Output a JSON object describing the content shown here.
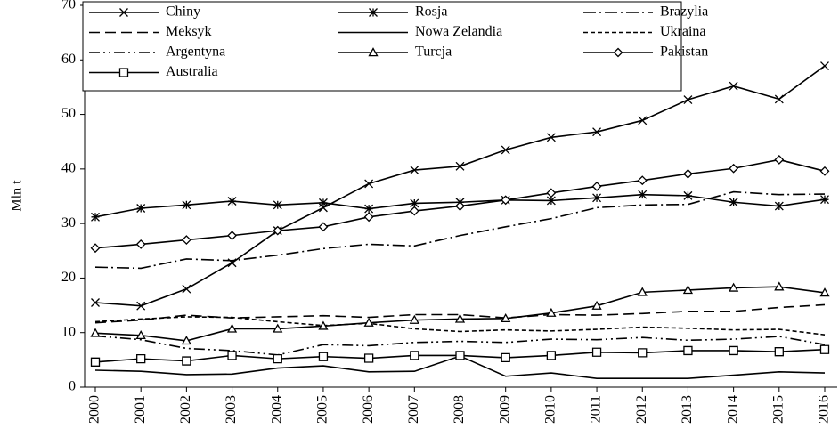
{
  "chart_data": {
    "type": "line",
    "y_label": "Mln t",
    "categories": [
      "2000",
      "2001",
      "2002",
      "2003",
      "2004",
      "2005",
      "2006",
      "2007",
      "2008",
      "2009",
      "2010",
      "2011",
      "2012",
      "2013",
      "2014",
      "2015",
      "2016"
    ],
    "ylim": [
      0,
      70
    ],
    "yticks": [
      0,
      10,
      20,
      30,
      40,
      50,
      60,
      70
    ],
    "legend": "top-left",
    "series": [
      {
        "name": "Chiny",
        "color": "#000000",
        "marker": "x",
        "line_style": "solid",
        "values": [
          15.5,
          14.9,
          18.0,
          22.8,
          28.7,
          32.9,
          37.3,
          39.8,
          40.5,
          43.5,
          45.8,
          46.8,
          48.9,
          52.7,
          55.2,
          52.8,
          58.9
        ]
      },
      {
        "name": "Rosja",
        "color": "#000000",
        "marker": "asterisk",
        "line_style": "solid",
        "values": [
          31.2,
          32.8,
          33.4,
          34.1,
          33.4,
          33.8,
          32.7,
          33.7,
          33.9,
          34.3,
          34.2,
          34.7,
          35.3,
          35.1,
          33.9,
          33.2,
          34.4
        ]
      },
      {
        "name": "Brazylia",
        "color": "#000000",
        "marker": "none",
        "line_style": "dash-dot",
        "values": [
          22.0,
          21.8,
          23.5,
          23.2,
          24.2,
          25.4,
          26.2,
          25.9,
          27.8,
          29.4,
          30.9,
          32.9,
          33.4,
          33.5,
          35.8,
          35.3,
          35.4
        ]
      },
      {
        "name": "Meksyk",
        "color": "#000000",
        "marker": "none",
        "line_style": "dashed",
        "values": [
          11.8,
          12.3,
          13.2,
          12.7,
          12.9,
          13.1,
          12.8,
          13.3,
          13.3,
          12.7,
          13.3,
          13.2,
          13.5,
          13.9,
          13.9,
          14.6,
          15.1
        ]
      },
      {
        "name": "Nowa Zelandia",
        "color": "#000000",
        "marker": "none",
        "line_style": "solid",
        "values": [
          3.1,
          2.9,
          2.3,
          2.4,
          3.5,
          3.9,
          2.8,
          2.9,
          5.7,
          2.0,
          2.6,
          1.6,
          1.6,
          1.6,
          2.2,
          2.8,
          2.6
        ]
      },
      {
        "name": "Ukraina",
        "color": "#000000",
        "marker": "none",
        "line_style": "dotted",
        "values": [
          12.0,
          12.5,
          12.9,
          12.8,
          12.0,
          11.3,
          11.7,
          10.7,
          10.2,
          10.5,
          10.3,
          10.6,
          11.0,
          10.8,
          10.5,
          10.6,
          9.6
        ]
      },
      {
        "name": "Argentyna",
        "color": "#000000",
        "marker": "none",
        "line_style": "dash-dot-dot",
        "values": [
          9.4,
          8.7,
          7.1,
          6.7,
          5.9,
          7.8,
          7.6,
          8.2,
          8.4,
          8.2,
          8.8,
          8.7,
          9.1,
          8.6,
          8.8,
          9.3,
          7.8
        ]
      },
      {
        "name": "Turcja",
        "color": "#000000",
        "marker": "triangle",
        "line_style": "solid",
        "values": [
          9.9,
          9.5,
          8.5,
          10.7,
          10.7,
          11.2,
          11.8,
          12.3,
          12.5,
          12.6,
          13.6,
          14.9,
          17.4,
          17.8,
          18.2,
          18.4,
          17.3
        ]
      },
      {
        "name": "Pakistan",
        "color": "#000000",
        "marker": "diamond",
        "line_style": "solid",
        "values": [
          25.5,
          26.2,
          27.0,
          27.8,
          28.7,
          29.4,
          31.2,
          32.3,
          33.2,
          34.3,
          35.6,
          36.8,
          37.9,
          39.1,
          40.1,
          41.7,
          39.6
        ]
      },
      {
        "name": "Australia",
        "color": "#000000",
        "marker": "square",
        "line_style": "solid",
        "values": [
          4.6,
          5.2,
          4.8,
          5.8,
          5.2,
          5.6,
          5.3,
          5.8,
          5.8,
          5.4,
          5.8,
          6.4,
          6.3,
          6.7,
          6.7,
          6.5,
          6.9
        ]
      }
    ]
  }
}
